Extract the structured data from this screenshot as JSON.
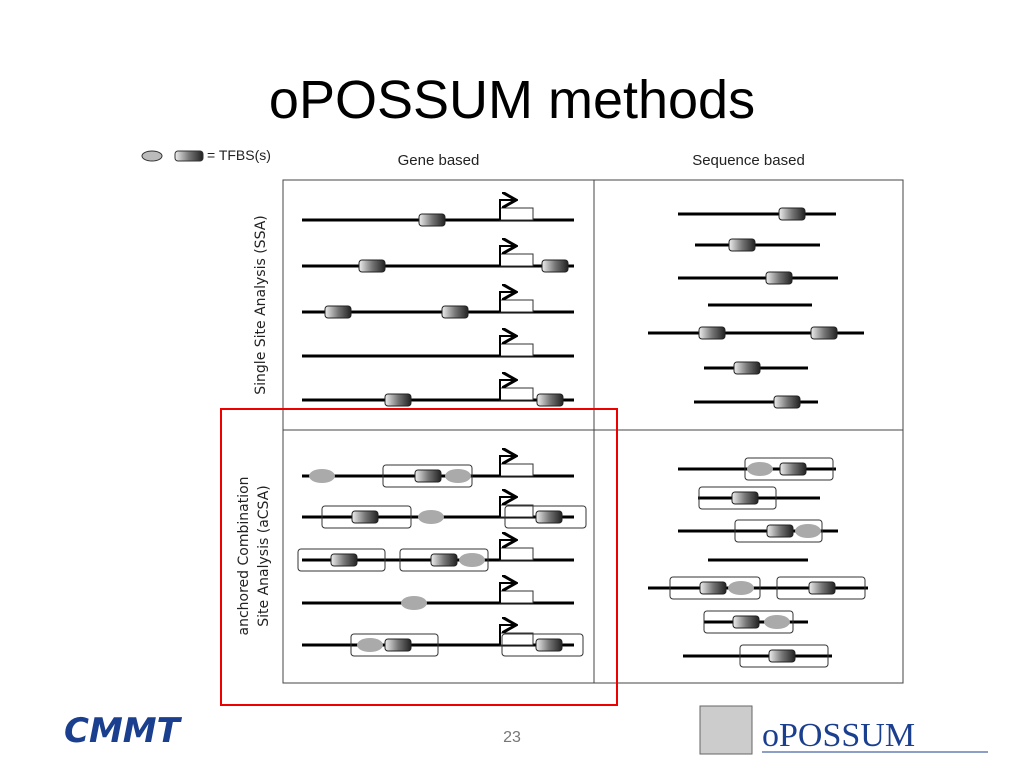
{
  "title": "oPOSSUM methods",
  "legend": "= TFBS(s)",
  "columns": [
    "Gene based",
    "Sequence based"
  ],
  "rows": [
    [
      "Single Site Analysis (SSA)"
    ],
    [
      "anchored Combination",
      "Site Analysis (aCSA)"
    ]
  ],
  "page_number": "23",
  "logos": [
    "CMMT",
    "oPOSSUM"
  ]
}
